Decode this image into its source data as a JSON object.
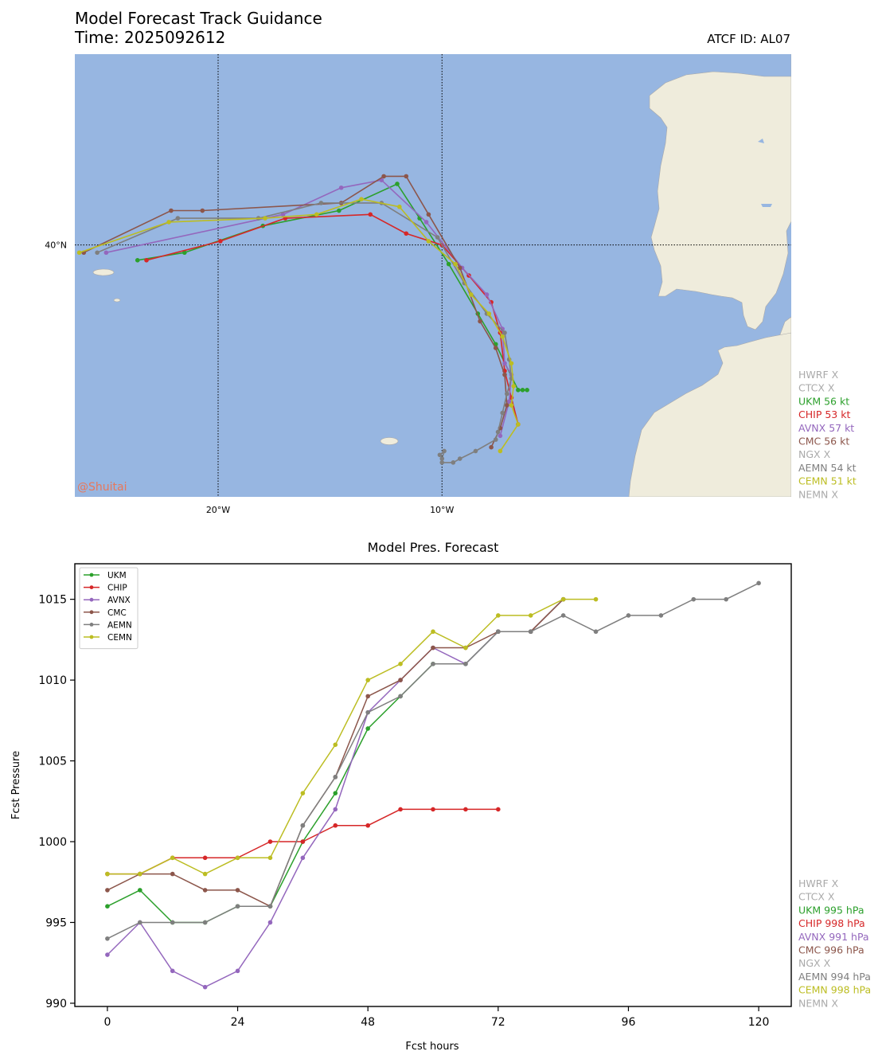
{
  "header": {
    "title": "Model Forecast Track Guidance",
    "time_label": "Time: 2025092612",
    "atcf_label": "ATCF ID: AL07"
  },
  "map": {
    "watermark": "@Shuitai",
    "lat_labels": [
      "40°N"
    ],
    "lon_labels": [
      "20°W",
      "10°W"
    ],
    "extent": {
      "lon_min": -26.4,
      "lon_max": 5.6,
      "lat_min": 33.4,
      "lat_max": 45.0
    },
    "gridlines": {
      "lon": [
        -20,
        -10
      ],
      "lat": [
        40
      ]
    },
    "ocean_color": "#97b6e1",
    "land_color": "#efecdc",
    "legend": [
      {
        "label": "HWRF X",
        "color": "#aaaaaa"
      },
      {
        "label": "CTCX X",
        "color": "#aaaaaa"
      },
      {
        "label": "UKM 56 kt",
        "color": "#2ca02c"
      },
      {
        "label": "CHIP 53 kt",
        "color": "#d62728"
      },
      {
        "label": "AVNX 57 kt",
        "color": "#9467bd"
      },
      {
        "label": "CMC 56 kt",
        "color": "#8c564b"
      },
      {
        "label": "NGX X",
        "color": "#aaaaaa"
      },
      {
        "label": "AEMN 54 kt",
        "color": "#7f7f7f"
      },
      {
        "label": "CEMN 51 kt",
        "color": "#bcbd22"
      },
      {
        "label": "NEMN X",
        "color": "#aaaaaa"
      }
    ]
  },
  "chart_data": {
    "type": "line",
    "title": "Model Pres. Forecast",
    "xlabel": "Fcst hours",
    "ylabel": "Fcst Pressure",
    "xlim": [
      -6,
      126
    ],
    "ylim": [
      989.8,
      1017.2
    ],
    "xticks": [
      0,
      24,
      48,
      72,
      96,
      120
    ],
    "yticks": [
      990,
      995,
      1000,
      1005,
      1010,
      1015
    ],
    "legend_position": "upper-left",
    "series": [
      {
        "name": "UKM",
        "color": "#2ca02c",
        "x": [
          0,
          6,
          12,
          18,
          24,
          30,
          36,
          42,
          48,
          54,
          60,
          66,
          72,
          78,
          84
        ],
        "values": [
          996,
          997,
          995,
          995,
          996,
          996,
          1000,
          1003,
          1007,
          1009,
          1011,
          1011,
          1013,
          1013,
          1015
        ]
      },
      {
        "name": "CHIP",
        "color": "#d62728",
        "x": [
          0,
          6,
          12,
          18,
          24,
          30,
          36,
          42,
          48,
          54,
          60,
          66,
          72
        ],
        "values": [
          998,
          998,
          999,
          999,
          999,
          1000,
          1000,
          1001,
          1001,
          1002,
          1002,
          1002,
          1002
        ]
      },
      {
        "name": "AVNX",
        "color": "#9467bd",
        "x": [
          0,
          6,
          12,
          18,
          24,
          30,
          36,
          42,
          48,
          54,
          60,
          66,
          72,
          78,
          84
        ],
        "values": [
          993,
          995,
          992,
          991,
          992,
          995,
          999,
          1002,
          1008,
          1010,
          1012,
          1011,
          1013,
          1013,
          1015
        ]
      },
      {
        "name": "CMC",
        "color": "#8c564b",
        "x": [
          0,
          6,
          12,
          18,
          24,
          30,
          36,
          42,
          48,
          54,
          60,
          66,
          72,
          78,
          84
        ],
        "values": [
          997,
          998,
          998,
          997,
          997,
          996,
          1001,
          1004,
          1009,
          1010,
          1012,
          1012,
          1013,
          1013,
          1015
        ]
      },
      {
        "name": "AEMN",
        "color": "#7f7f7f",
        "x": [
          0,
          6,
          12,
          18,
          24,
          30,
          36,
          42,
          48,
          54,
          60,
          66,
          72,
          78,
          84,
          90,
          96,
          102,
          108,
          114,
          120
        ],
        "values": [
          994,
          995,
          995,
          995,
          996,
          996,
          1001,
          1004,
          1008,
          1009,
          1011,
          1011,
          1013,
          1013,
          1014,
          1013,
          1014,
          1014,
          1015,
          1015,
          1016
        ]
      },
      {
        "name": "CEMN",
        "color": "#bcbd22",
        "x": [
          0,
          6,
          12,
          18,
          24,
          30,
          36,
          42,
          48,
          54,
          60,
          66,
          72,
          78,
          84,
          90
        ],
        "values": [
          998,
          998,
          999,
          998,
          999,
          999,
          1003,
          1006,
          1010,
          1011,
          1013,
          1012,
          1014,
          1014,
          1015,
          1015
        ]
      }
    ],
    "side_legend": [
      {
        "label": "HWRF X",
        "color": "#aaaaaa"
      },
      {
        "label": "CTCX X",
        "color": "#aaaaaa"
      },
      {
        "label": "UKM 995 hPa",
        "color": "#2ca02c"
      },
      {
        "label": "CHIP 998 hPa",
        "color": "#d62728"
      },
      {
        "label": "AVNX 991 hPa",
        "color": "#9467bd"
      },
      {
        "label": "CMC 996 hPa",
        "color": "#8c564b"
      },
      {
        "label": "NGX X",
        "color": "#aaaaaa"
      },
      {
        "label": "AEMN 994 hPa",
        "color": "#7f7f7f"
      },
      {
        "label": "CEMN 998 hPa",
        "color": "#bcbd22"
      },
      {
        "label": "NEMN X",
        "color": "#aaaaaa"
      }
    ]
  },
  "tracks": [
    {
      "name": "UKM",
      "color": "#2ca02c",
      "points": [
        [
          -23.6,
          39.6
        ],
        [
          -21.5,
          39.8
        ],
        [
          -18.0,
          40.5
        ],
        [
          -14.6,
          40.9
        ],
        [
          -12.0,
          41.6
        ],
        [
          -11.0,
          40.7
        ],
        [
          -9.7,
          39.5
        ],
        [
          -8.4,
          38.2
        ],
        [
          -7.6,
          37.4
        ],
        [
          -6.6,
          36.2
        ],
        [
          -6.4,
          36.2
        ],
        [
          -6.2,
          36.2
        ]
      ]
    },
    {
      "name": "CHIP",
      "color": "#d62728",
      "points": [
        [
          -23.2,
          39.6
        ],
        [
          -19.9,
          40.1
        ],
        [
          -17.0,
          40.7
        ],
        [
          -13.2,
          40.8
        ],
        [
          -11.6,
          40.3
        ],
        [
          -10.0,
          40.0
        ],
        [
          -8.8,
          39.2
        ],
        [
          -7.8,
          38.5
        ],
        [
          -7.4,
          37.7
        ],
        [
          -7.2,
          36.7
        ],
        [
          -6.9,
          36.0
        ],
        [
          -6.6,
          35.3
        ]
      ]
    },
    {
      "name": "AVNX",
      "color": "#9467bd",
      "points": [
        [
          -25.0,
          39.8
        ],
        [
          -17.1,
          40.8
        ],
        [
          -14.5,
          41.5
        ],
        [
          -12.7,
          41.7
        ],
        [
          -10.7,
          40.6
        ],
        [
          -9.1,
          39.4
        ],
        [
          -8.0,
          38.7
        ],
        [
          -7.3,
          37.8
        ],
        [
          -7.2,
          36.9
        ],
        [
          -6.9,
          36.6
        ],
        [
          -7.0,
          35.9
        ],
        [
          -7.4,
          35.0
        ]
      ]
    },
    {
      "name": "CMC",
      "color": "#8c564b",
      "points": [
        [
          -26.0,
          39.8
        ],
        [
          -22.1,
          40.9
        ],
        [
          -20.7,
          40.9
        ],
        [
          -14.5,
          41.1
        ],
        [
          -12.6,
          41.8
        ],
        [
          -11.6,
          41.8
        ],
        [
          -10.6,
          40.8
        ],
        [
          -9.2,
          39.4
        ],
        [
          -8.3,
          38.0
        ],
        [
          -7.6,
          37.3
        ],
        [
          -7.2,
          36.6
        ],
        [
          -7.1,
          35.8
        ],
        [
          -7.4,
          35.2
        ],
        [
          -7.8,
          34.7
        ]
      ]
    },
    {
      "name": "AEMN",
      "color": "#7f7f7f",
      "points": [
        [
          -25.4,
          39.8
        ],
        [
          -21.8,
          40.7
        ],
        [
          -18.2,
          40.7
        ],
        [
          -15.4,
          41.1
        ],
        [
          -12.7,
          41.1
        ],
        [
          -10.2,
          40.2
        ],
        [
          -9.0,
          39.0
        ],
        [
          -8.0,
          38.2
        ],
        [
          -7.2,
          37.7
        ],
        [
          -7.0,
          37.0
        ],
        [
          -6.9,
          36.5
        ],
        [
          -7.1,
          36.1
        ],
        [
          -7.3,
          35.6
        ],
        [
          -7.5,
          35.1
        ],
        [
          -7.6,
          34.9
        ],
        [
          -8.5,
          34.6
        ],
        [
          -9.2,
          34.4
        ],
        [
          -9.5,
          34.3
        ],
        [
          -10.0,
          34.3
        ],
        [
          -10.0,
          34.4
        ],
        [
          -9.9,
          34.6
        ],
        [
          -10.1,
          34.5
        ]
      ]
    },
    {
      "name": "CEMN",
      "color": "#bcbd22",
      "points": [
        [
          -26.2,
          39.8
        ],
        [
          -22.2,
          40.6
        ],
        [
          -17.9,
          40.7
        ],
        [
          -15.6,
          40.8
        ],
        [
          -13.6,
          41.2
        ],
        [
          -11.9,
          41.0
        ],
        [
          -10.6,
          40.1
        ],
        [
          -9.4,
          39.5
        ],
        [
          -8.7,
          38.7
        ],
        [
          -7.9,
          38.2
        ],
        [
          -7.3,
          37.6
        ],
        [
          -6.9,
          36.9
        ],
        [
          -6.8,
          36.3
        ],
        [
          -6.9,
          35.8
        ],
        [
          -6.6,
          35.3
        ],
        [
          -7.4,
          34.6
        ]
      ]
    }
  ]
}
